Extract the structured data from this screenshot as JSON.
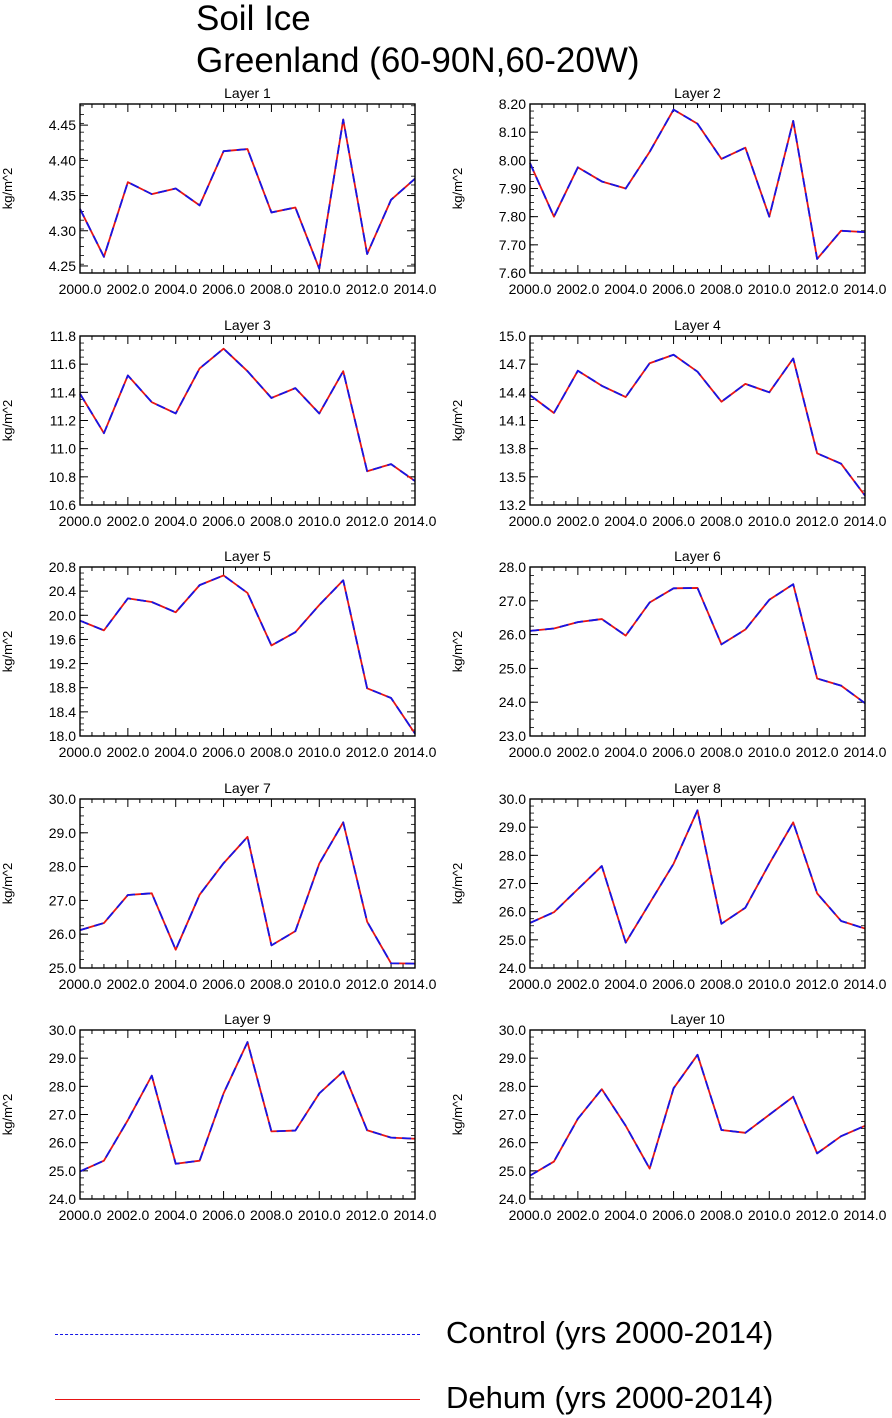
{
  "figure": {
    "title_line1": "Soil Ice",
    "title_line2": "Greenland (60-90N,60-20W)"
  },
  "colors": {
    "control": "#1515e6",
    "dehum": "#e61515"
  },
  "legend": [
    {
      "label": "Control (yrs 2000-2014)",
      "color": "#1515e6",
      "style": "dashed"
    },
    {
      "label": "Dehum (yrs 2000-2014)",
      "color": "#e61515",
      "style": "solid"
    }
  ],
  "chart_data": [
    {
      "type": "line",
      "title": "Layer 1",
      "ylabel": "kg/m^2",
      "x": [
        2000,
        2001,
        2002,
        2003,
        2004,
        2005,
        2006,
        2007,
        2008,
        2009,
        2010,
        2011,
        2012,
        2013,
        2014
      ],
      "xlim": [
        2000,
        2014
      ],
      "xticks": [
        2000,
        2002,
        2004,
        2006,
        2008,
        2010,
        2012,
        2014
      ],
      "xtick_labels": [
        "2000.0",
        "2002.0",
        "2004.0",
        "2006.0",
        "2008.0",
        "2010.0",
        "2012.0",
        "2014.0"
      ],
      "ylim": [
        4.24,
        4.48
      ],
      "yticks": [
        4.25,
        4.3,
        4.35,
        4.4,
        4.45
      ],
      "ytick_labels": [
        "4.25",
        "4.30",
        "4.35",
        "4.40",
        "4.45"
      ],
      "series": [
        {
          "name": "Control (yrs 2000-2014)",
          "values": [
            4.331,
            4.263,
            4.369,
            4.352,
            4.36,
            4.336,
            4.413,
            4.416,
            4.326,
            4.333,
            4.246,
            4.458,
            4.267,
            4.344,
            4.374
          ]
        },
        {
          "name": "Dehum (yrs 2000-2014)",
          "values": [
            4.331,
            4.263,
            4.369,
            4.352,
            4.36,
            4.336,
            4.413,
            4.416,
            4.326,
            4.333,
            4.246,
            4.458,
            4.267,
            4.344,
            4.374
          ]
        }
      ]
    },
    {
      "type": "line",
      "title": "Layer 2",
      "ylabel": "kg/m^2",
      "x": [
        2000,
        2001,
        2002,
        2003,
        2004,
        2005,
        2006,
        2007,
        2008,
        2009,
        2010,
        2011,
        2012,
        2013,
        2014
      ],
      "xlim": [
        2000,
        2014
      ],
      "xticks": [
        2000,
        2002,
        2004,
        2006,
        2008,
        2010,
        2012,
        2014
      ],
      "xtick_labels": [
        "2000.0",
        "2002.0",
        "2004.0",
        "2006.0",
        "2008.0",
        "2010.0",
        "2012.0",
        "2014.0"
      ],
      "ylim": [
        7.6,
        8.2
      ],
      "yticks": [
        7.6,
        7.7,
        7.8,
        7.9,
        8.0,
        8.1,
        8.2
      ],
      "ytick_labels": [
        "7.60",
        "7.70",
        "7.80",
        "7.90",
        "8.00",
        "8.10",
        "8.20"
      ],
      "series": [
        {
          "name": "Control (yrs 2000-2014)",
          "values": [
            7.99,
            7.8,
            7.975,
            7.925,
            7.9,
            8.03,
            8.18,
            8.13,
            8.005,
            8.045,
            7.8,
            8.14,
            7.65,
            7.75,
            7.745
          ]
        },
        {
          "name": "Dehum (yrs 2000-2014)",
          "values": [
            7.99,
            7.8,
            7.975,
            7.925,
            7.9,
            8.03,
            8.18,
            8.13,
            8.005,
            8.045,
            7.8,
            8.14,
            7.65,
            7.75,
            7.745
          ]
        }
      ]
    },
    {
      "type": "line",
      "title": "Layer 3",
      "ylabel": "kg/m^2",
      "x": [
        2000,
        2001,
        2002,
        2003,
        2004,
        2005,
        2006,
        2007,
        2008,
        2009,
        2010,
        2011,
        2012,
        2013,
        2014
      ],
      "xlim": [
        2000,
        2014
      ],
      "xticks": [
        2000,
        2002,
        2004,
        2006,
        2008,
        2010,
        2012,
        2014
      ],
      "xtick_labels": [
        "2000.0",
        "2002.0",
        "2004.0",
        "2006.0",
        "2008.0",
        "2010.0",
        "2012.0",
        "2014.0"
      ],
      "ylim": [
        10.6,
        11.8
      ],
      "yticks": [
        10.6,
        10.8,
        11.0,
        11.2,
        11.4,
        11.6,
        11.8
      ],
      "ytick_labels": [
        "10.6",
        "10.8",
        "11.0",
        "11.2",
        "11.4",
        "11.6",
        "11.8"
      ],
      "series": [
        {
          "name": "Control (yrs 2000-2014)",
          "values": [
            11.39,
            11.11,
            11.52,
            11.33,
            11.25,
            11.57,
            11.71,
            11.55,
            11.36,
            11.43,
            11.25,
            11.55,
            10.84,
            10.89,
            10.77
          ]
        },
        {
          "name": "Dehum (yrs 2000-2014)",
          "values": [
            11.39,
            11.11,
            11.52,
            11.33,
            11.25,
            11.57,
            11.71,
            11.55,
            11.36,
            11.43,
            11.25,
            11.55,
            10.84,
            10.89,
            10.77
          ]
        }
      ]
    },
    {
      "type": "line",
      "title": "Layer 4",
      "ylabel": "kg/m^2",
      "x": [
        2000,
        2001,
        2002,
        2003,
        2004,
        2005,
        2006,
        2007,
        2008,
        2009,
        2010,
        2011,
        2012,
        2013,
        2014
      ],
      "xlim": [
        2000,
        2014
      ],
      "xticks": [
        2000,
        2002,
        2004,
        2006,
        2008,
        2010,
        2012,
        2014
      ],
      "xtick_labels": [
        "2000.0",
        "2002.0",
        "2004.0",
        "2006.0",
        "2008.0",
        "2010.0",
        "2012.0",
        "2014.0"
      ],
      "ylim": [
        13.2,
        15.0
      ],
      "yticks": [
        13.2,
        13.5,
        13.8,
        14.1,
        14.4,
        14.7,
        15.0
      ],
      "ytick_labels": [
        "13.2",
        "13.5",
        "13.8",
        "14.1",
        "14.4",
        "14.7",
        "15.0"
      ],
      "series": [
        {
          "name": "Control (yrs 2000-2014)",
          "values": [
            14.37,
            14.18,
            14.63,
            14.47,
            14.35,
            14.71,
            14.8,
            14.62,
            14.3,
            14.49,
            14.4,
            14.76,
            13.75,
            13.64,
            13.3
          ]
        },
        {
          "name": "Dehum (yrs 2000-2014)",
          "values": [
            14.37,
            14.18,
            14.63,
            14.47,
            14.35,
            14.71,
            14.8,
            14.62,
            14.3,
            14.49,
            14.4,
            14.76,
            13.75,
            13.64,
            13.3
          ]
        }
      ]
    },
    {
      "type": "line",
      "title": "Layer 5",
      "ylabel": "kg/m^2",
      "x": [
        2000,
        2001,
        2002,
        2003,
        2004,
        2005,
        2006,
        2007,
        2008,
        2009,
        2010,
        2011,
        2012,
        2013,
        2014
      ],
      "xlim": [
        2000,
        2014
      ],
      "xticks": [
        2000,
        2002,
        2004,
        2006,
        2008,
        2010,
        2012,
        2014
      ],
      "xtick_labels": [
        "2000.0",
        "2002.0",
        "2004.0",
        "2006.0",
        "2008.0",
        "2010.0",
        "2012.0",
        "2014.0"
      ],
      "ylim": [
        18.0,
        20.8
      ],
      "yticks": [
        18.0,
        18.4,
        18.8,
        19.2,
        19.6,
        20.0,
        20.4,
        20.8
      ],
      "ytick_labels": [
        "18.0",
        "18.4",
        "18.8",
        "19.2",
        "19.6",
        "20.0",
        "20.4",
        "20.8"
      ],
      "series": [
        {
          "name": "Control (yrs 2000-2014)",
          "values": [
            19.91,
            19.75,
            20.28,
            20.22,
            20.05,
            20.5,
            20.66,
            20.37,
            19.5,
            19.72,
            20.17,
            20.58,
            18.79,
            18.63,
            18.04
          ]
        },
        {
          "name": "Dehum (yrs 2000-2014)",
          "values": [
            19.91,
            19.75,
            20.28,
            20.22,
            20.05,
            20.5,
            20.66,
            20.37,
            19.5,
            19.72,
            20.17,
            20.58,
            18.79,
            18.63,
            18.04
          ]
        }
      ]
    },
    {
      "type": "line",
      "title": "Layer 6",
      "ylabel": "kg/m^2",
      "x": [
        2000,
        2001,
        2002,
        2003,
        2004,
        2005,
        2006,
        2007,
        2008,
        2009,
        2010,
        2011,
        2012,
        2013,
        2014
      ],
      "xlim": [
        2000,
        2014
      ],
      "xticks": [
        2000,
        2002,
        2004,
        2006,
        2008,
        2010,
        2012,
        2014
      ],
      "xtick_labels": [
        "2000.0",
        "2002.0",
        "2004.0",
        "2006.0",
        "2008.0",
        "2010.0",
        "2012.0",
        "2014.0"
      ],
      "ylim": [
        23.0,
        28.0
      ],
      "yticks": [
        23.0,
        24.0,
        25.0,
        26.0,
        27.0,
        28.0
      ],
      "ytick_labels": [
        "23.0",
        "24.0",
        "25.0",
        "26.0",
        "27.0",
        "28.0"
      ],
      "series": [
        {
          "name": "Control (yrs 2000-2014)",
          "values": [
            26.11,
            26.18,
            26.37,
            26.46,
            25.97,
            26.95,
            27.37,
            27.38,
            25.71,
            26.15,
            27.03,
            27.49,
            24.7,
            24.49,
            23.97
          ]
        },
        {
          "name": "Dehum (yrs 2000-2014)",
          "values": [
            26.11,
            26.18,
            26.37,
            26.46,
            25.97,
            26.95,
            27.37,
            27.38,
            25.71,
            26.15,
            27.03,
            27.49,
            24.7,
            24.49,
            23.97
          ]
        }
      ]
    },
    {
      "type": "line",
      "title": "Layer 7",
      "ylabel": "kg/m^2",
      "x": [
        2000,
        2001,
        2002,
        2003,
        2004,
        2005,
        2006,
        2007,
        2008,
        2009,
        2010,
        2011,
        2012,
        2013,
        2014
      ],
      "xlim": [
        2000,
        2014
      ],
      "xticks": [
        2000,
        2002,
        2004,
        2006,
        2008,
        2010,
        2012,
        2014
      ],
      "xtick_labels": [
        "2000.0",
        "2002.0",
        "2004.0",
        "2006.0",
        "2008.0",
        "2010.0",
        "2012.0",
        "2014.0"
      ],
      "ylim": [
        25.0,
        30.0
      ],
      "yticks": [
        25.0,
        26.0,
        27.0,
        28.0,
        29.0,
        30.0
      ],
      "ytick_labels": [
        "25.0",
        "26.0",
        "27.0",
        "28.0",
        "29.0",
        "30.0"
      ],
      "series": [
        {
          "name": "Control (yrs 2000-2014)",
          "values": [
            26.12,
            26.33,
            27.16,
            27.21,
            25.54,
            27.17,
            28.1,
            28.88,
            25.67,
            26.09,
            28.09,
            29.31,
            26.37,
            25.14,
            25.13
          ]
        },
        {
          "name": "Dehum (yrs 2000-2014)",
          "values": [
            26.12,
            26.33,
            27.16,
            27.21,
            25.54,
            27.17,
            28.1,
            28.88,
            25.67,
            26.09,
            28.09,
            29.31,
            26.37,
            25.14,
            25.13
          ]
        }
      ]
    },
    {
      "type": "line",
      "title": "Layer 8",
      "ylabel": "kg/m^2",
      "x": [
        2000,
        2001,
        2002,
        2003,
        2004,
        2005,
        2006,
        2007,
        2008,
        2009,
        2010,
        2011,
        2012,
        2013,
        2014
      ],
      "xlim": [
        2000,
        2014
      ],
      "xticks": [
        2000,
        2002,
        2004,
        2006,
        2008,
        2010,
        2012,
        2014
      ],
      "xtick_labels": [
        "2000.0",
        "2002.0",
        "2004.0",
        "2006.0",
        "2008.0",
        "2010.0",
        "2012.0",
        "2014.0"
      ],
      "ylim": [
        24.0,
        30.0
      ],
      "yticks": [
        24.0,
        25.0,
        26.0,
        27.0,
        28.0,
        29.0,
        30.0
      ],
      "ytick_labels": [
        "24.0",
        "25.0",
        "26.0",
        "27.0",
        "28.0",
        "29.0",
        "30.0"
      ],
      "series": [
        {
          "name": "Control (yrs 2000-2014)",
          "values": [
            25.6,
            25.98,
            26.8,
            27.62,
            24.9,
            26.3,
            27.7,
            29.6,
            25.57,
            26.14,
            27.7,
            29.17,
            26.65,
            25.67,
            25.4
          ]
        },
        {
          "name": "Dehum (yrs 2000-2014)",
          "values": [
            25.6,
            25.98,
            26.8,
            27.62,
            24.9,
            26.3,
            27.7,
            29.6,
            25.57,
            26.14,
            27.7,
            29.17,
            26.65,
            25.67,
            25.4
          ]
        }
      ]
    },
    {
      "type": "line",
      "title": "Layer 9",
      "ylabel": "kg/m^2",
      "x": [
        2000,
        2001,
        2002,
        2003,
        2004,
        2005,
        2006,
        2007,
        2008,
        2009,
        2010,
        2011,
        2012,
        2013,
        2014
      ],
      "xlim": [
        2000,
        2014
      ],
      "xticks": [
        2000,
        2002,
        2004,
        2006,
        2008,
        2010,
        2012,
        2014
      ],
      "xtick_labels": [
        "2000.0",
        "2002.0",
        "2004.0",
        "2006.0",
        "2008.0",
        "2010.0",
        "2012.0",
        "2014.0"
      ],
      "ylim": [
        24.0,
        30.0
      ],
      "yticks": [
        24.0,
        25.0,
        26.0,
        27.0,
        28.0,
        29.0,
        30.0
      ],
      "ytick_labels": [
        "24.0",
        "25.0",
        "26.0",
        "27.0",
        "28.0",
        "29.0",
        "30.0"
      ],
      "series": [
        {
          "name": "Control (yrs 2000-2014)",
          "values": [
            24.98,
            25.36,
            26.8,
            28.38,
            25.25,
            25.36,
            27.75,
            29.57,
            26.4,
            26.43,
            27.75,
            28.53,
            26.44,
            26.18,
            26.14
          ]
        },
        {
          "name": "Dehum (yrs 2000-2014)",
          "values": [
            24.98,
            25.36,
            26.8,
            28.38,
            25.25,
            25.36,
            27.75,
            29.57,
            26.4,
            26.43,
            27.75,
            28.53,
            26.44,
            26.18,
            26.14
          ]
        }
      ]
    },
    {
      "type": "line",
      "title": "Layer 10",
      "ylabel": "kg/m^2",
      "x": [
        2000,
        2001,
        2002,
        2003,
        2004,
        2005,
        2006,
        2007,
        2008,
        2009,
        2010,
        2011,
        2012,
        2013,
        2014
      ],
      "xlim": [
        2000,
        2014
      ],
      "xticks": [
        2000,
        2002,
        2004,
        2006,
        2008,
        2010,
        2012,
        2014
      ],
      "xtick_labels": [
        "2000.0",
        "2002.0",
        "2004.0",
        "2006.0",
        "2008.0",
        "2010.0",
        "2012.0",
        "2014.0"
      ],
      "ylim": [
        24.0,
        30.0
      ],
      "yticks": [
        24.0,
        25.0,
        26.0,
        27.0,
        28.0,
        29.0,
        30.0
      ],
      "ytick_labels": [
        "24.0",
        "25.0",
        "26.0",
        "27.0",
        "28.0",
        "29.0",
        "30.0"
      ],
      "series": [
        {
          "name": "Control (yrs 2000-2014)",
          "values": [
            24.83,
            25.33,
            26.85,
            27.9,
            26.6,
            25.08,
            27.93,
            29.12,
            26.45,
            26.35,
            26.99,
            27.63,
            25.62,
            26.23,
            26.6
          ]
        },
        {
          "name": "Dehum (yrs 2000-2014)",
          "values": [
            24.83,
            25.33,
            26.85,
            27.9,
            26.6,
            25.08,
            27.93,
            29.12,
            26.45,
            26.35,
            26.99,
            27.63,
            25.62,
            26.23,
            26.6
          ]
        }
      ]
    }
  ]
}
